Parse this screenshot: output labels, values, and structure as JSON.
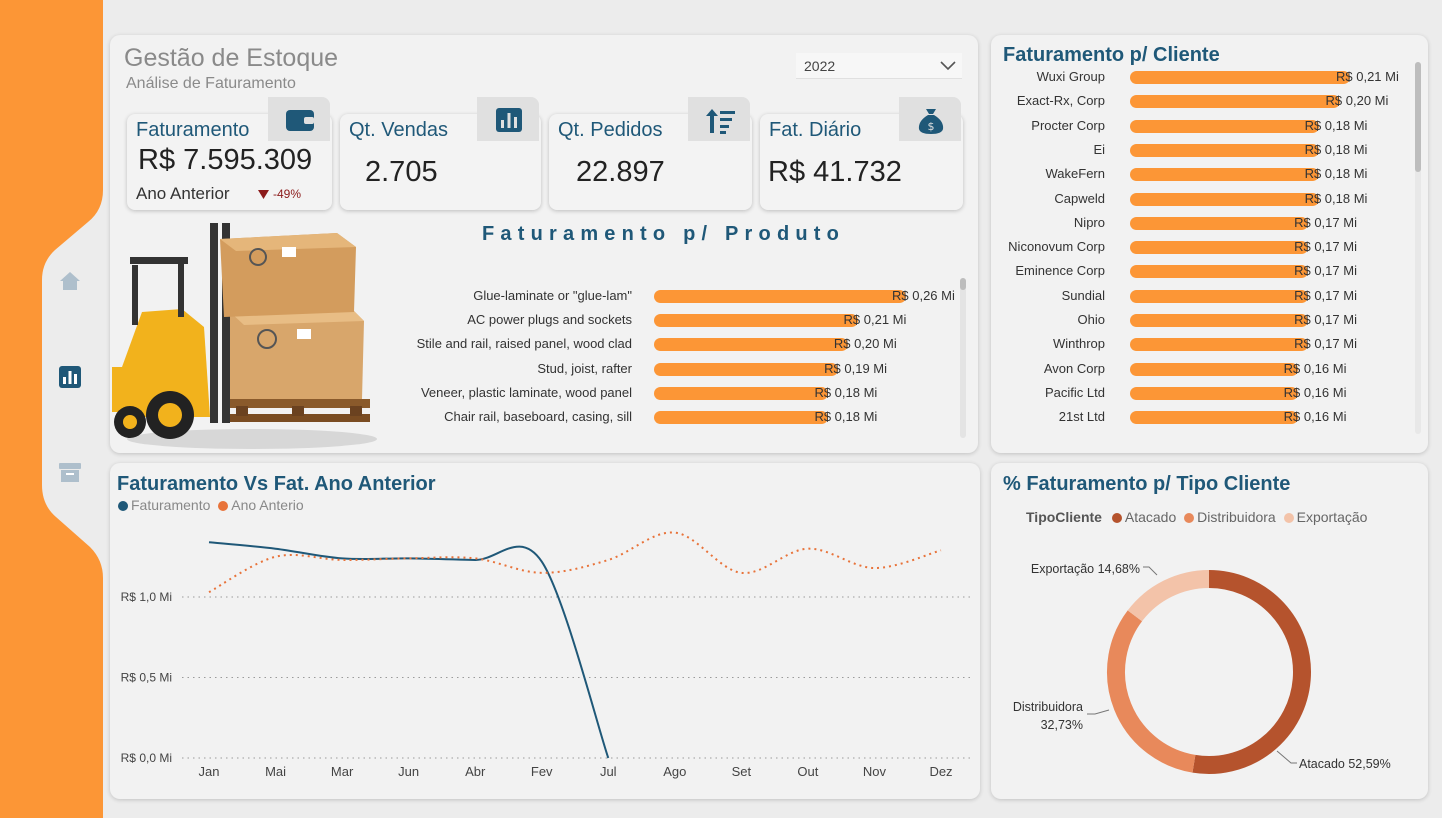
{
  "header": {
    "title": "Gestão de Estoque",
    "subtitle": "Análise de Faturamento"
  },
  "year_filter": {
    "selected": "2022"
  },
  "colors": {
    "accent": "#fc9636",
    "title": "#1f5878",
    "line_current": "#1f5878",
    "line_previous": "#e8733a",
    "atacado": "#b5532d",
    "distribuidora": "#e8895b",
    "exportacao": "#f3c3a9"
  },
  "kpis": {
    "faturamento": {
      "title": "Faturamento",
      "value": "R$ 7.595.309",
      "sub_label": "Ano Anterior",
      "change": "-49%",
      "icon": "wallet-icon"
    },
    "qt_vendas": {
      "title": "Qt. Vendas",
      "value": "2.705",
      "icon": "bar-chart-icon"
    },
    "qt_pedidos": {
      "title": "Qt. Pedidos",
      "value": "22.897",
      "icon": "sort-icon"
    },
    "fat_diario": {
      "title": "Fat. Diário",
      "value": "R$ 41.732",
      "icon": "money-bag-icon"
    }
  },
  "product_chart": {
    "title": "Faturamento p/ Produto",
    "items": [
      {
        "label": "Glue-laminate or \"glue-lam\"",
        "value": 0.26,
        "value_label": "R$ 0,26 Mi"
      },
      {
        "label": "AC power plugs and sockets",
        "value": 0.21,
        "value_label": "R$ 0,21 Mi"
      },
      {
        "label": "Stile and rail, raised panel, wood clad",
        "value": 0.2,
        "value_label": "R$ 0,20 Mi"
      },
      {
        "label": "Stud, joist, rafter",
        "value": 0.19,
        "value_label": "R$ 0,19 Mi"
      },
      {
        "label": "Veneer, plastic laminate, wood panel",
        "value": 0.18,
        "value_label": "R$ 0,18 Mi"
      },
      {
        "label": "Chair rail, baseboard, casing, sill",
        "value": 0.18,
        "value_label": "R$ 0,18 Mi"
      }
    ]
  },
  "client_chart": {
    "title": "Faturamento p/ Cliente",
    "items": [
      {
        "label": "Wuxi Group",
        "value": 0.21,
        "value_label": "R$ 0,21 Mi"
      },
      {
        "label": "Exact-Rx, Corp",
        "value": 0.2,
        "value_label": "R$ 0,20 Mi"
      },
      {
        "label": "Procter Corp",
        "value": 0.18,
        "value_label": "R$ 0,18 Mi"
      },
      {
        "label": "Ei",
        "value": 0.18,
        "value_label": "R$ 0,18 Mi"
      },
      {
        "label": "WakeFern",
        "value": 0.18,
        "value_label": "R$ 0,18 Mi"
      },
      {
        "label": "Capweld",
        "value": 0.18,
        "value_label": "R$ 0,18 Mi"
      },
      {
        "label": "Nipro",
        "value": 0.17,
        "value_label": "R$ 0,17 Mi"
      },
      {
        "label": "Niconovum Corp",
        "value": 0.17,
        "value_label": "R$ 0,17 Mi"
      },
      {
        "label": "Eminence Corp",
        "value": 0.17,
        "value_label": "R$ 0,17 Mi"
      },
      {
        "label": "Sundial",
        "value": 0.17,
        "value_label": "R$ 0,17 Mi"
      },
      {
        "label": "Ohio",
        "value": 0.17,
        "value_label": "R$ 0,17 Mi"
      },
      {
        "label": "Winthrop",
        "value": 0.17,
        "value_label": "R$ 0,17 Mi"
      },
      {
        "label": "Avon Corp",
        "value": 0.16,
        "value_label": "R$ 0,16 Mi"
      },
      {
        "label": "Pacific Ltd",
        "value": 0.16,
        "value_label": "R$ 0,16 Mi"
      },
      {
        "label": "21st Ltd",
        "value": 0.16,
        "value_label": "R$ 0,16 Mi"
      }
    ]
  },
  "chart_data": [
    {
      "type": "line",
      "title": "Faturamento Vs Fat. Ano Anterior",
      "categories": [
        "Jan",
        "Mai",
        "Mar",
        "Jun",
        "Abr",
        "Fev",
        "Jul",
        "Ago",
        "Set",
        "Out",
        "Nov",
        "Dez"
      ],
      "series": [
        {
          "name": "Faturamento",
          "values": [
            1.34,
            1.3,
            1.24,
            1.24,
            1.23,
            1.22,
            0.0,
            null,
            null,
            null,
            null,
            null
          ]
        },
        {
          "name": "Ano Anterio",
          "values": [
            1.03,
            1.25,
            1.23,
            1.24,
            1.24,
            1.15,
            1.23,
            1.4,
            1.15,
            1.3,
            1.18,
            1.29
          ]
        }
      ],
      "y_ticks": [
        "R$ 0,0 Mi",
        "R$ 0,5 Mi",
        "R$ 1,0 Mi"
      ],
      "ylim": [
        0,
        1.5
      ],
      "grid": true,
      "legend": "top-left"
    },
    {
      "type": "pie",
      "title": "% Faturamento p/ Tipo Cliente",
      "legend_title": "TipoCliente",
      "legend": "top",
      "slices": [
        {
          "name": "Atacado",
          "value": 52.59,
          "label": "Atacado 52,59%"
        },
        {
          "name": "Distribuidora",
          "value": 32.73,
          "label_name": "Distribuidora",
          "label_pct": "32,73%"
        },
        {
          "name": "Exportação",
          "value": 14.68,
          "label": "Exportação 14,68%"
        }
      ]
    }
  ],
  "nav": {
    "items": [
      {
        "icon": "home-icon"
      },
      {
        "icon": "bar-chart-icon"
      },
      {
        "icon": "archive-icon"
      }
    ]
  }
}
